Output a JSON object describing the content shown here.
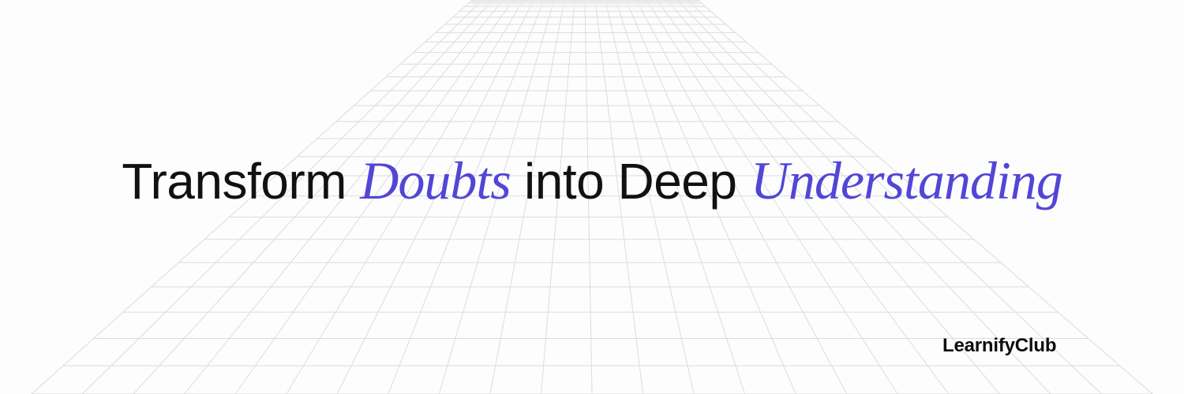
{
  "headline": {
    "part1": "Transform ",
    "accent1": "Doubts",
    "part2": " into Deep ",
    "accent2": "Understanding"
  },
  "brand": {
    "name": "LearnifyClub"
  },
  "colors": {
    "background": "#fdfdfd",
    "text": "#111111",
    "accent": "#5146d6",
    "grid_line": "#dcdcdc"
  }
}
